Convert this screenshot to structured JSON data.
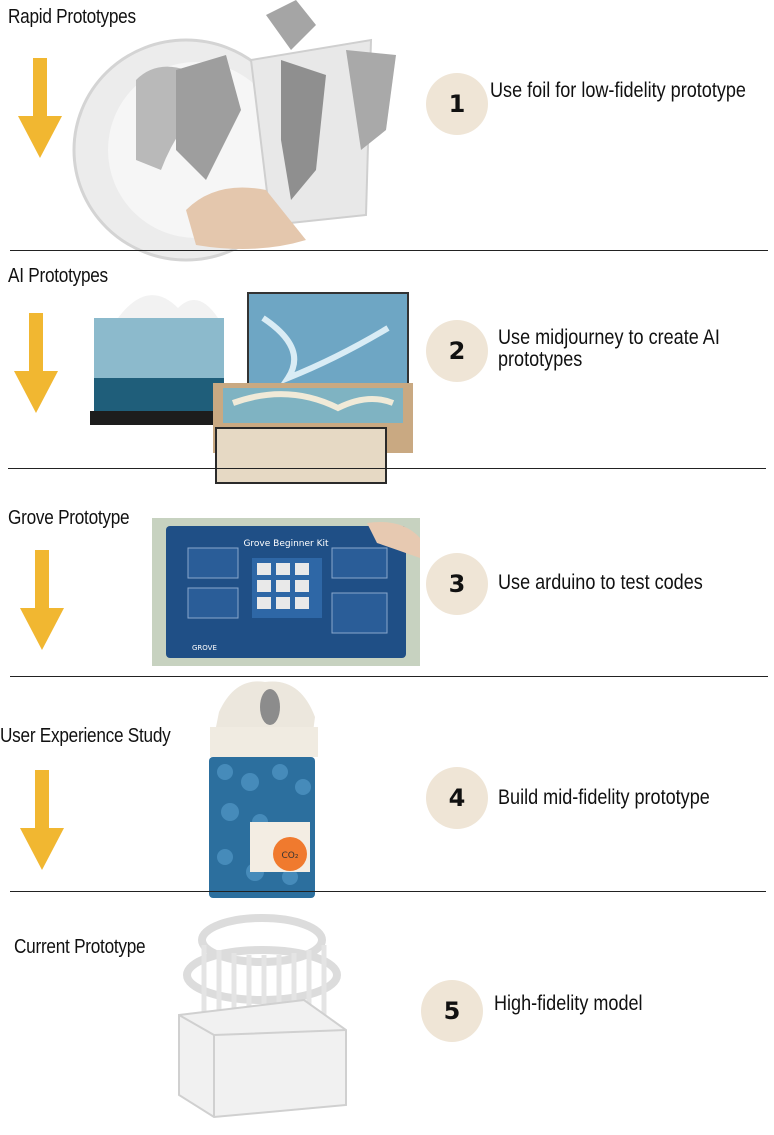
{
  "colors": {
    "arrow": "#f1b731",
    "badge_bg": "#efe5d6",
    "divider": "#222222"
  },
  "stages": [
    {
      "title": "Rapid Prototypes",
      "number": "1",
      "description": "Use foil for low-fidelity prototype",
      "image_icon": "foil-cup-prototype-photo"
    },
    {
      "title": "AI Prototypes",
      "number": "2",
      "description": "Use midjourney to create AI prototypes",
      "image_icon": "ai-generated-glacier-boxes-photo"
    },
    {
      "title": "Grove Prototype",
      "number": "3",
      "description": "Use arduino to test codes",
      "image_icon": "grove-beginner-kit-photo"
    },
    {
      "title": "User Experience Study",
      "number": "4",
      "description": "Build mid-fidelity prototype",
      "image_icon": "iceberg-jar-prototype-photo"
    },
    {
      "title": "Current Prototype",
      "number": "5",
      "description": "High-fidelity model",
      "image_icon": "white-3d-printed-model-photo"
    }
  ],
  "photo_text": {
    "grove_kit_title": "Grove Beginner Kit",
    "grove_brand": "GROVE",
    "co2_knob": "CO₂"
  }
}
